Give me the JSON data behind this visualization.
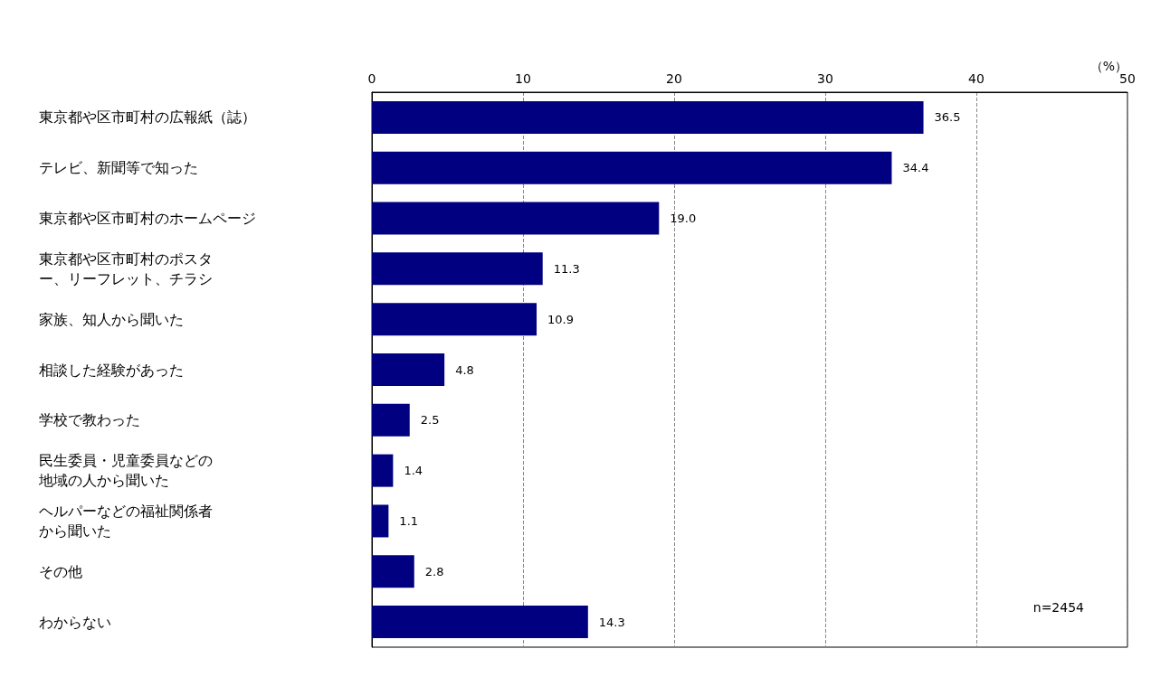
{
  "chart_data": {
    "type": "bar",
    "orientation": "horizontal",
    "categories": [
      "東京都や区市町村の広報紙（誌）",
      "テレビ、新聞等で知った",
      "東京都や区市町村のホームページ",
      "東京都や区市町村のポスター、リーフレット、チラシ",
      "家族、知人から聞いた",
      "相談した経験があった",
      "学校で教わった",
      "民生委員・児童委員などの地域の人から聞いた",
      "ヘルパーなどの福祉関係者から聞いた",
      "その他",
      "わからない"
    ],
    "values": [
      36.5,
      34.4,
      19.0,
      11.3,
      10.9,
      4.8,
      2.5,
      1.4,
      1.1,
      2.8,
      14.3
    ],
    "value_labels": [
      "36.5",
      "34.4",
      "19.0",
      "11.3",
      "10.9",
      "4.8",
      "2.5",
      "1.4",
      "1.1",
      "2.8",
      "14.3"
    ],
    "color": "#000080",
    "xlim": [
      0,
      50
    ],
    "xticks": [
      0,
      10,
      20,
      30,
      40,
      50
    ],
    "xlabel": "（%）",
    "grid": "x",
    "annotations": [
      "n=2454"
    ]
  }
}
